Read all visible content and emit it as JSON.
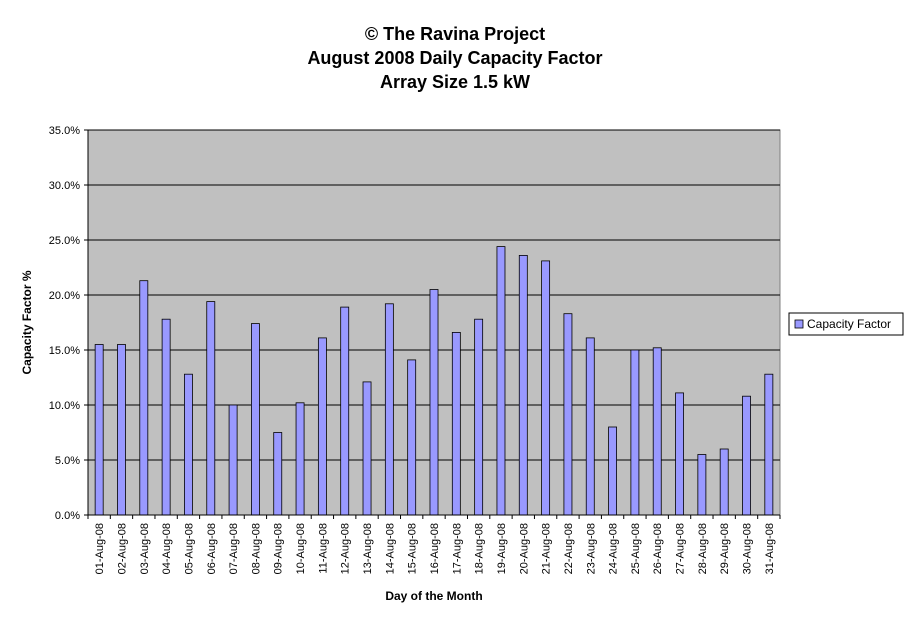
{
  "chart_data": {
    "type": "bar",
    "title": [
      "© The Ravina Project",
      "August 2008 Daily Capacity Factor",
      "Array Size 1.5 kW"
    ],
    "xlabel": "Day of the Month",
    "ylabel": "Capacity Factor %",
    "ylim": [
      0,
      35
    ],
    "yticks": [
      0,
      5,
      10,
      15,
      20,
      25,
      30,
      35
    ],
    "ytick_labels": [
      "0.0%",
      "5.0%",
      "10.0%",
      "15.0%",
      "20.0%",
      "25.0%",
      "30.0%",
      "35.0%"
    ],
    "grid": true,
    "legend_position": "right",
    "categories": [
      "01-Aug-08",
      "02-Aug-08",
      "03-Aug-08",
      "04-Aug-08",
      "05-Aug-08",
      "06-Aug-08",
      "07-Aug-08",
      "08-Aug-08",
      "09-Aug-08",
      "10-Aug-08",
      "11-Aug-08",
      "12-Aug-08",
      "13-Aug-08",
      "14-Aug-08",
      "15-Aug-08",
      "16-Aug-08",
      "17-Aug-08",
      "18-Aug-08",
      "19-Aug-08",
      "20-Aug-08",
      "21-Aug-08",
      "22-Aug-08",
      "23-Aug-08",
      "24-Aug-08",
      "25-Aug-08",
      "26-Aug-08",
      "27-Aug-08",
      "28-Aug-08",
      "29-Aug-08",
      "30-Aug-08",
      "31-Aug-08"
    ],
    "series": [
      {
        "name": "Capacity Factor",
        "color": "#9999ff",
        "values": [
          15.5,
          15.5,
          21.3,
          17.8,
          12.8,
          19.4,
          10.0,
          17.4,
          7.5,
          10.2,
          16.1,
          18.9,
          12.1,
          19.2,
          14.1,
          20.5,
          16.6,
          17.8,
          24.4,
          23.6,
          23.1,
          18.3,
          16.1,
          8.0,
          15.0,
          15.2,
          11.1,
          5.5,
          6.0,
          10.8,
          12.8
        ]
      }
    ],
    "plot_background": "#c0c0c0"
  }
}
